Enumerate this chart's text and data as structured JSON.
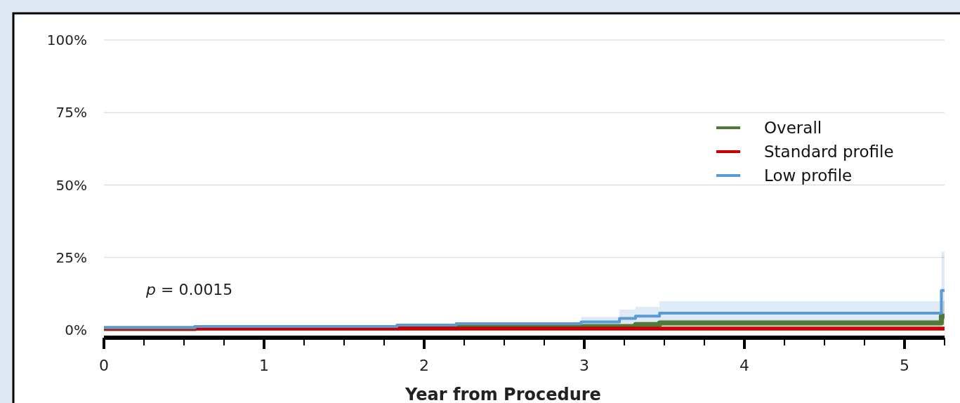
{
  "chart_data": {
    "type": "step",
    "xlabel": "Year from Procedure",
    "xlim": [
      0,
      5.25
    ],
    "xticks": [
      0,
      {
        "value": 0.25,
        "label": null
      },
      {
        "value": 0.5,
        "label": null
      },
      {
        "value": 0.75,
        "label": null
      },
      1,
      {
        "value": 1.25,
        "label": null
      },
      {
        "value": 1.5,
        "label": null
      },
      {
        "value": 1.75,
        "label": null
      },
      2,
      {
        "value": 2.25,
        "label": null
      },
      {
        "value": 2.5,
        "label": null
      },
      {
        "value": 2.75,
        "label": null
      },
      3,
      {
        "value": 3.25,
        "label": null
      },
      {
        "value": 3.5,
        "label": null
      },
      {
        "value": 3.75,
        "label": null
      },
      4,
      {
        "value": 4.25,
        "label": null
      },
      {
        "value": 4.5,
        "label": null
      },
      {
        "value": 4.75,
        "label": null
      },
      5,
      {
        "value": 5.25,
        "label": null
      }
    ],
    "ylim": [
      0,
      100
    ],
    "yticks": [
      {
        "value": 0,
        "label": "0%"
      },
      {
        "value": 25,
        "label": "25%"
      },
      {
        "value": 50,
        "label": "50%"
      },
      {
        "value": 75,
        "label": "75%"
      },
      {
        "value": 100,
        "label": "100%"
      }
    ],
    "grid": "y",
    "legend": "top right",
    "annotations": [
      "p = 0.0015"
    ],
    "series": [
      {
        "name": "Overall",
        "color": "#4f7a38",
        "x": [
          0,
          0.57,
          1.83,
          2.98,
          3.32,
          3.47,
          5.23,
          5.25
        ],
        "values": [
          0.5,
          0.8,
          1.0,
          1.2,
          1.9,
          2.4,
          4.8,
          4.8
        ],
        "lower": [
          null,
          null,
          null,
          0.6,
          1.0,
          1.2,
          1.5,
          1.5
        ],
        "upper": [
          null,
          null,
          null,
          1.8,
          2.8,
          3.5,
          10,
          10
        ]
      },
      {
        "name": "Standard profile",
        "color": "#cc0000",
        "x": [
          0,
          5.25
        ],
        "values": [
          0.5,
          0.5
        ]
      },
      {
        "name": "Low profile",
        "color": "#5b9bd5",
        "x": [
          0,
          0.57,
          1.83,
          2.2,
          2.98,
          3.22,
          3.32,
          3.47,
          5.23,
          5.25
        ],
        "values": [
          0.8,
          1.2,
          1.7,
          2.2,
          2.8,
          4.0,
          4.8,
          5.8,
          13.6,
          13.6
        ],
        "lower": [
          null,
          null,
          null,
          null,
          1.5,
          2.0,
          2.5,
          3,
          3,
          3
        ],
        "upper": [
          null,
          null,
          null,
          null,
          4.5,
          7,
          8,
          9.9,
          27,
          27
        ]
      }
    ]
  }
}
